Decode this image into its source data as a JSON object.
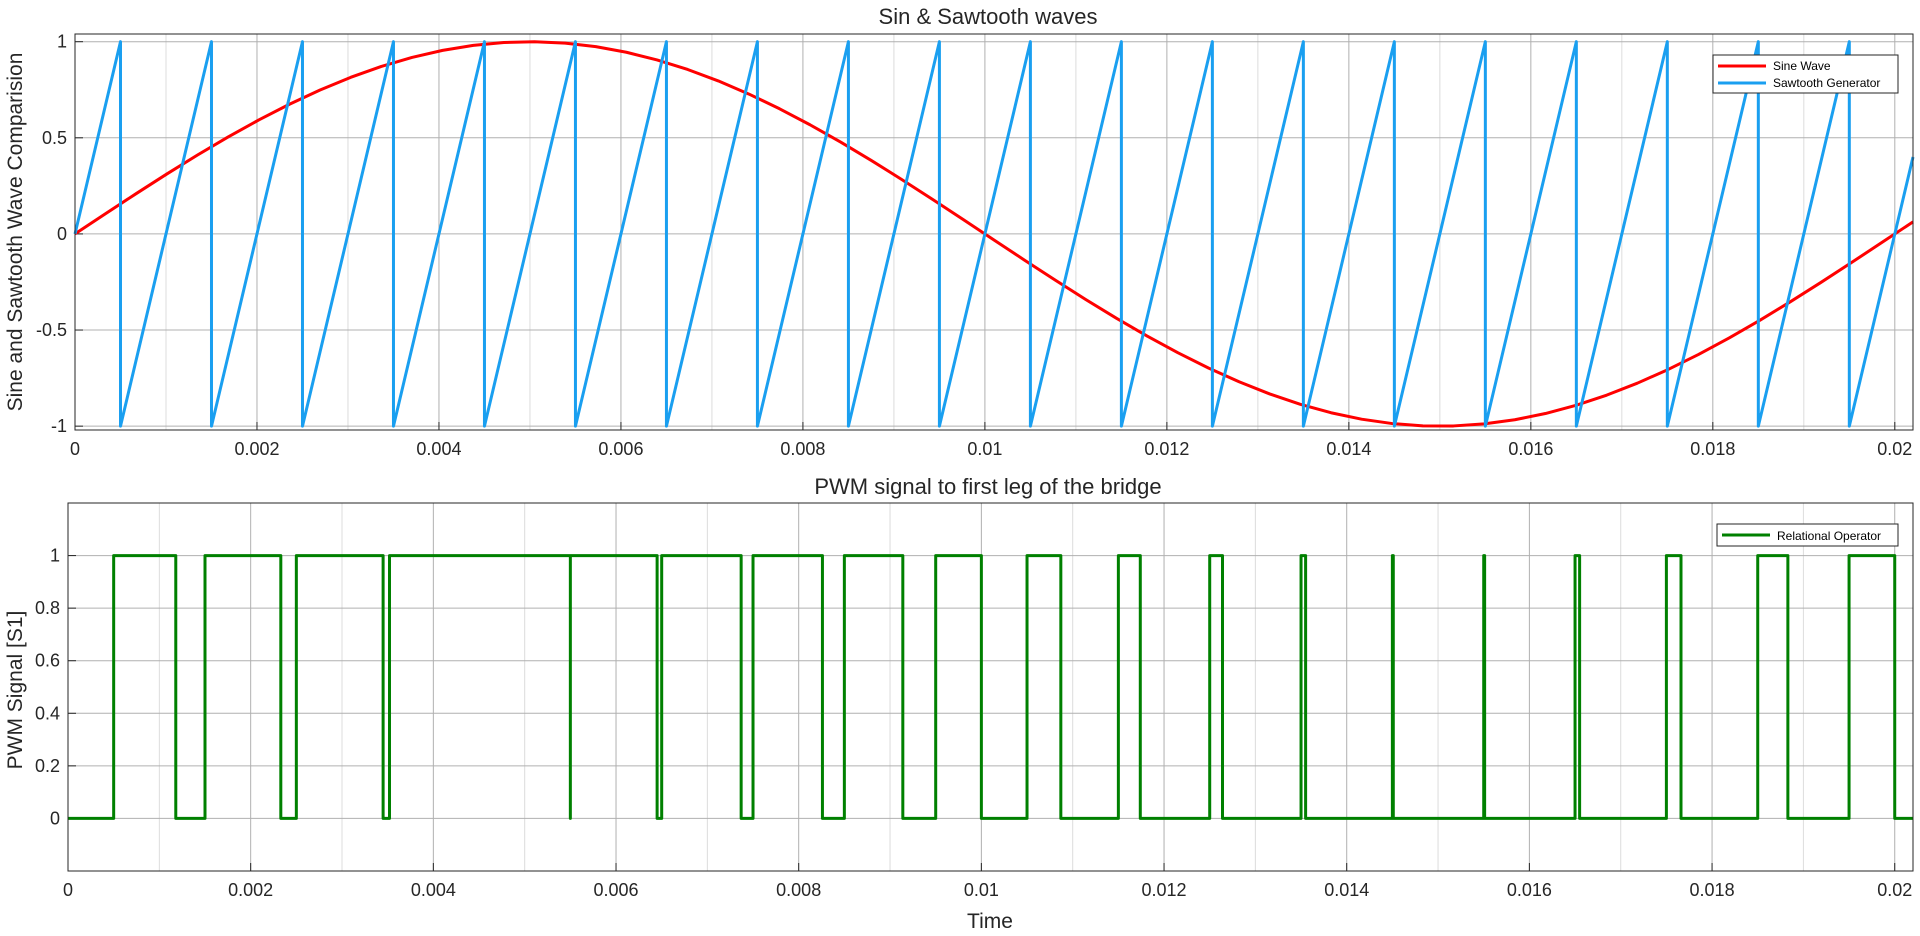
{
  "chart_data": [
    {
      "type": "line",
      "title": "Sin & Sawtooth waves",
      "xlabel": "",
      "ylabel": "Sine and Sawtooth Wave Comparision",
      "xlim": [
        0,
        0.0202
      ],
      "ylim": [
        -1.02,
        1.04
      ],
      "xticks": [
        0,
        0.002,
        0.004,
        0.006,
        0.008,
        0.01,
        0.012,
        0.014,
        0.016,
        0.018,
        0.02
      ],
      "xtick_labels": [
        "0",
        "0.002",
        "0.004",
        "0.006",
        "0.008",
        "0.01",
        "0.012",
        "0.014",
        "0.016",
        "0.018",
        "0.02"
      ],
      "yticks": [
        -1,
        -0.5,
        0,
        0.5,
        1
      ],
      "ytick_labels": [
        "-1",
        "-0.5",
        "0",
        "0.5",
        "1"
      ],
      "grid": true,
      "legend_position": "top-right",
      "series": [
        {
          "name": "Sine Wave",
          "color": "#ff0000",
          "function": "sine",
          "amplitude": 1,
          "frequency_hz": 50
        },
        {
          "name": "Sawtooth Generator",
          "color": "#1a9ff0",
          "function": "sawtooth",
          "amplitude": 1,
          "frequency_hz": 1000,
          "reset_times": [
            0.0005,
            0.0015,
            0.0025,
            0.0035,
            0.0045,
            0.0055,
            0.0065,
            0.0075,
            0.0085,
            0.0095,
            0.0105,
            0.0115,
            0.0125,
            0.0135,
            0.0145,
            0.0155,
            0.0165,
            0.0175,
            0.0185,
            0.0195
          ]
        }
      ]
    },
    {
      "type": "line",
      "title": "PWM signal to first leg of the bridge",
      "xlabel": "Time",
      "ylabel": "PWM Signal [S1]",
      "xlim": [
        0,
        0.0202
      ],
      "ylim": [
        -0.2,
        1.2
      ],
      "xticks": [
        0,
        0.002,
        0.004,
        0.006,
        0.008,
        0.01,
        0.012,
        0.014,
        0.016,
        0.018,
        0.02
      ],
      "xtick_labels": [
        "0",
        "0.002",
        "0.004",
        "0.006",
        "0.008",
        "0.01",
        "0.012",
        "0.014",
        "0.016",
        "0.018",
        "0.02"
      ],
      "yticks": [
        0,
        0.2,
        0.4,
        0.6,
        0.8,
        1
      ],
      "ytick_labels": [
        "0",
        "0.2",
        "0.4",
        "0.6",
        "0.8",
        "1"
      ],
      "grid": true,
      "legend_position": "top-right",
      "series": [
        {
          "name": "Relational Operator",
          "color": "#008000",
          "function": "pwm",
          "high_intervals": [
            [
              0.0005,
              0.00118
            ],
            [
              0.0015,
              0.00233
            ],
            [
              0.0025,
              0.00345
            ],
            [
              0.00352,
              0.0055
            ],
            [
              0.0055,
              0.00645
            ],
            [
              0.0065,
              0.00737
            ],
            [
              0.0075,
              0.00826
            ],
            [
              0.0085,
              0.00914
            ],
            [
              0.0095,
              0.01
            ],
            [
              0.0105,
              0.01087
            ],
            [
              0.0115,
              0.01174
            ],
            [
              0.0125,
              0.01264
            ],
            [
              0.0135,
              0.01355
            ],
            [
              0.0145,
              0.01451
            ],
            [
              0.0155,
              0.01551
            ],
            [
              0.0165,
              0.01655
            ],
            [
              0.0175,
              0.01766
            ],
            [
              0.0185,
              0.01883
            ],
            [
              0.0195,
              0.02
            ]
          ]
        }
      ]
    }
  ]
}
